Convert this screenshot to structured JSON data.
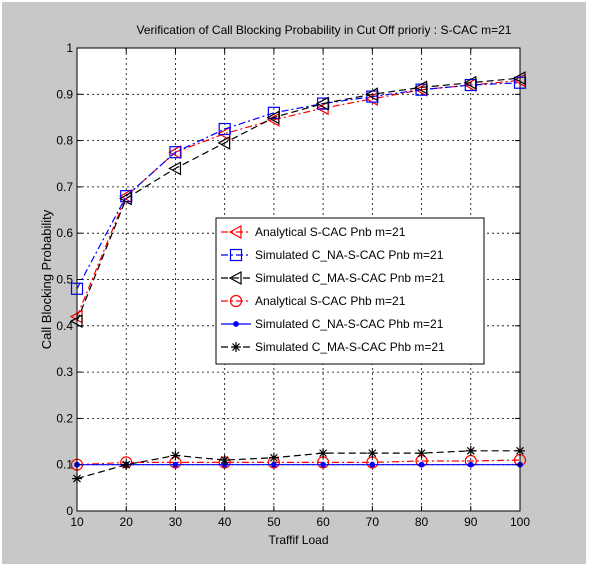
{
  "chart_data": {
    "type": "line",
    "title": "Verification of Call Blocking Probability in Cut Off prioriy : S-CAC m=21",
    "xlabel": "Traffif Load",
    "ylabel": "Call Blocking Probability",
    "xlim": [
      10,
      100
    ],
    "ylim": [
      0,
      1
    ],
    "x_ticks": [
      "10",
      "20",
      "30",
      "40",
      "50",
      "60",
      "70",
      "80",
      "90",
      "100"
    ],
    "y_ticks": [
      "0",
      "0.1",
      "0.2",
      "0.3",
      "0.4",
      "0.5",
      "0.6",
      "0.7",
      "0.8",
      "0.9",
      "1"
    ],
    "grid": true,
    "legend_position": "center-right",
    "x": [
      10,
      20,
      30,
      40,
      50,
      60,
      70,
      80,
      90,
      100
    ],
    "series": [
      {
        "name": "Analytical S-CAC Pnb m=21",
        "color": "#ff0000",
        "dash": "dashdot",
        "marker": "triangle-left",
        "values": [
          0.42,
          0.68,
          0.775,
          0.815,
          0.845,
          0.87,
          0.89,
          0.91,
          0.92,
          0.93
        ]
      },
      {
        "name": "Simulated C_NA-S-CAC Pnb m=21",
        "color": "#0000ff",
        "dash": "dashdot",
        "marker": "square",
        "values": [
          0.48,
          0.68,
          0.775,
          0.825,
          0.86,
          0.88,
          0.895,
          0.91,
          0.92,
          0.925
        ]
      },
      {
        "name": "Simulated C_MA-S-CAC Pnb m=21",
        "color": "#000000",
        "dash": "dashed",
        "marker": "triangle-left",
        "values": [
          0.41,
          0.675,
          0.74,
          0.795,
          0.85,
          0.88,
          0.9,
          0.915,
          0.925,
          0.935
        ]
      },
      {
        "name": "Analytical S-CAC Phb m=21",
        "color": "#ff0000",
        "dash": "dashdot",
        "marker": "circle",
        "values": [
          0.1,
          0.105,
          0.105,
          0.105,
          0.105,
          0.105,
          0.105,
          0.108,
          0.108,
          0.11
        ]
      },
      {
        "name": "Simulated C_NA-S-CAC Phb m=21",
        "color": "#0000ff",
        "dash": "solid",
        "marker": "dot",
        "values": [
          0.1,
          0.1,
          0.1,
          0.1,
          0.1,
          0.1,
          0.1,
          0.1,
          0.1,
          0.1
        ]
      },
      {
        "name": "Simulated C_MA-S-CAC Phb m=21",
        "color": "#000000",
        "dash": "dashed",
        "marker": "star",
        "values": [
          0.07,
          0.1,
          0.12,
          0.11,
          0.115,
          0.125,
          0.125,
          0.125,
          0.13,
          0.13
        ]
      }
    ]
  }
}
